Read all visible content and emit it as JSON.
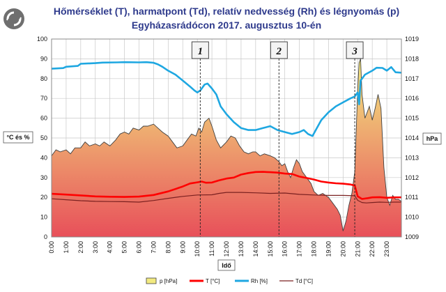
{
  "title_line1": "Hőmérséklet (T), harmatpont (Td), relatív nedvesség (Rh) és légnyomás (p)",
  "title_line2": "Egyházasrádócon 2017. augusztus 10-én",
  "colors": {
    "pressure_fill_top": "#f2ea80",
    "pressure_fill_bottom": "#e8505a",
    "pressure_line": "#404040",
    "temperature": "#ff0000",
    "humidity": "#1ea7e1",
    "dewpoint": "#7a2020",
    "grid": "#c8c8c8"
  },
  "chart_data": {
    "type": "line",
    "x_unit": "hour",
    "x_ticks": [
      "0:00",
      "1:00",
      "2:00",
      "3:00",
      "4:00",
      "5:00",
      "6:00",
      "7:00",
      "8:00",
      "9:00",
      "10:00",
      "11:00",
      "12:00",
      "13:00",
      "14:00",
      "15:00",
      "16:00",
      "17:00",
      "18:00",
      "19:00",
      "20:00",
      "21:00",
      "22:00",
      "23:00"
    ],
    "x_range": [
      0,
      24
    ],
    "xlabel": "Idő",
    "ylabel_left": "°C és %",
    "ylabel_right": "hPa",
    "y_left": {
      "range": [
        0,
        100
      ],
      "ticks": [
        0,
        10,
        20,
        30,
        40,
        50,
        60,
        70,
        80,
        90,
        100
      ]
    },
    "y_right": {
      "range": [
        1009,
        1019
      ],
      "ticks": [
        1009,
        1010,
        1011,
        1012,
        1013,
        1014,
        1015,
        1016,
        1017,
        1018,
        1019
      ]
    },
    "grid": true,
    "legend_position": "bottom",
    "annotations": [
      {
        "label": "1",
        "x": 10.2
      },
      {
        "label": "2",
        "x": 15.6
      },
      {
        "label": "3",
        "x": 20.8
      }
    ],
    "series": [
      {
        "name": "p [hPa]",
        "axis": "right",
        "style": "area",
        "points": [
          [
            0,
            1013.1
          ],
          [
            0.3,
            1013.4
          ],
          [
            0.6,
            1013.3
          ],
          [
            1,
            1013.4
          ],
          [
            1.3,
            1013.2
          ],
          [
            1.6,
            1013.5
          ],
          [
            2,
            1013.5
          ],
          [
            2.3,
            1013.8
          ],
          [
            2.6,
            1013.6
          ],
          [
            3,
            1013.7
          ],
          [
            3.3,
            1013.6
          ],
          [
            3.6,
            1013.8
          ],
          [
            4,
            1013.6
          ],
          [
            4.4,
            1013.9
          ],
          [
            4.7,
            1014.2
          ],
          [
            5,
            1014.3
          ],
          [
            5.3,
            1014.2
          ],
          [
            5.6,
            1014.5
          ],
          [
            6,
            1014.4
          ],
          [
            6.3,
            1014.6
          ],
          [
            6.6,
            1014.6
          ],
          [
            7,
            1014.7
          ],
          [
            7.3,
            1014.5
          ],
          [
            7.6,
            1014.3
          ],
          [
            8,
            1014.1
          ],
          [
            8.3,
            1013.8
          ],
          [
            8.6,
            1013.5
          ],
          [
            9,
            1013.6
          ],
          [
            9.3,
            1013.9
          ],
          [
            9.6,
            1014.2
          ],
          [
            9.9,
            1014.1
          ],
          [
            10.1,
            1014.5
          ],
          [
            10.3,
            1014.3
          ],
          [
            10.5,
            1014.8
          ],
          [
            10.8,
            1015.0
          ],
          [
            11,
            1014.6
          ],
          [
            11.3,
            1013.9
          ],
          [
            11.6,
            1013.5
          ],
          [
            12,
            1013.8
          ],
          [
            12.3,
            1014.1
          ],
          [
            12.6,
            1014.0
          ],
          [
            12.9,
            1013.6
          ],
          [
            13.2,
            1013.3
          ],
          [
            13.5,
            1013.2
          ],
          [
            13.8,
            1013.3
          ],
          [
            14,
            1013.3
          ],
          [
            14.3,
            1013.1
          ],
          [
            14.6,
            1013.2
          ],
          [
            15,
            1013.1
          ],
          [
            15.3,
            1013.0
          ],
          [
            15.6,
            1012.8
          ],
          [
            15.8,
            1012.6
          ],
          [
            16,
            1012.7
          ],
          [
            16.2,
            1012.3
          ],
          [
            16.4,
            1012.0
          ],
          [
            16.6,
            1012.5
          ],
          [
            16.8,
            1012.9
          ],
          [
            17,
            1012.7
          ],
          [
            17.2,
            1012.3
          ],
          [
            17.5,
            1012.0
          ],
          [
            17.8,
            1011.7
          ],
          [
            18,
            1011.3
          ],
          [
            18.3,
            1011.1
          ],
          [
            18.6,
            1011.2
          ],
          [
            19,
            1011.0
          ],
          [
            19.3,
            1010.7
          ],
          [
            19.6,
            1010.4
          ],
          [
            19.8,
            1010.1
          ],
          [
            20,
            1009.3
          ],
          [
            20.2,
            1009.8
          ],
          [
            20.4,
            1010.6
          ],
          [
            20.6,
            1011.2
          ],
          [
            20.8,
            1012.3
          ],
          [
            20.9,
            1014.4
          ],
          [
            21,
            1016.5
          ],
          [
            21.1,
            1017.8
          ],
          [
            21.2,
            1018.0
          ],
          [
            21.3,
            1016.2
          ],
          [
            21.5,
            1015.0
          ],
          [
            21.8,
            1015.6
          ],
          [
            22,
            1014.9
          ],
          [
            22.2,
            1015.5
          ],
          [
            22.4,
            1016.2
          ],
          [
            22.6,
            1015.5
          ],
          [
            22.8,
            1012.5
          ],
          [
            23,
            1011.0
          ],
          [
            23.2,
            1010.6
          ],
          [
            23.4,
            1011.1
          ],
          [
            23.6,
            1010.9
          ],
          [
            23.8,
            1010.9
          ],
          [
            24,
            1010.8
          ]
        ]
      },
      {
        "name": "T [°C]",
        "axis": "left",
        "style": "line",
        "points": [
          [
            0,
            21.8
          ],
          [
            1,
            21.4
          ],
          [
            2,
            21.0
          ],
          [
            3,
            20.5
          ],
          [
            4,
            20.3
          ],
          [
            5,
            20.2
          ],
          [
            6,
            20.4
          ],
          [
            7,
            21.2
          ],
          [
            8,
            23.0
          ],
          [
            9,
            25.5
          ],
          [
            9.5,
            27.0
          ],
          [
            10,
            27.6
          ],
          [
            10.3,
            28.0
          ],
          [
            10.6,
            27.4
          ],
          [
            11,
            27.5
          ],
          [
            11.5,
            28.6
          ],
          [
            12,
            29.5
          ],
          [
            12.5,
            30.0
          ],
          [
            13,
            31.5
          ],
          [
            13.5,
            32.3
          ],
          [
            14,
            32.8
          ],
          [
            14.5,
            32.9
          ],
          [
            15,
            32.7
          ],
          [
            15.5,
            32.5
          ],
          [
            16,
            32.0
          ],
          [
            16.5,
            31.8
          ],
          [
            17,
            30.5
          ],
          [
            17.5,
            29.8
          ],
          [
            18,
            29.0
          ],
          [
            18.5,
            28.0
          ],
          [
            19,
            27.5
          ],
          [
            19.5,
            27.1
          ],
          [
            20,
            26.9
          ],
          [
            20.5,
            26.5
          ],
          [
            20.8,
            26.0
          ],
          [
            21,
            20.5
          ],
          [
            21.3,
            19.2
          ],
          [
            21.7,
            19.6
          ],
          [
            22,
            20.0
          ],
          [
            22.5,
            20.1
          ],
          [
            23,
            19.8
          ],
          [
            23.5,
            20.0
          ],
          [
            24,
            20.0
          ]
        ]
      },
      {
        "name": "Rh [%]",
        "axis": "left",
        "style": "line",
        "points": [
          [
            0,
            85
          ],
          [
            0.8,
            85.3
          ],
          [
            1,
            86
          ],
          [
            1.8,
            86.4
          ],
          [
            2,
            87.5
          ],
          [
            3,
            87.8
          ],
          [
            3.5,
            88.1
          ],
          [
            4.5,
            88.2
          ],
          [
            5,
            88.3
          ],
          [
            6,
            88.2
          ],
          [
            6.5,
            88.3
          ],
          [
            7,
            88
          ],
          [
            7.3,
            87.2
          ],
          [
            7.6,
            86
          ],
          [
            8,
            84
          ],
          [
            8.5,
            82
          ],
          [
            9,
            79
          ],
          [
            9.5,
            76
          ],
          [
            9.8,
            74
          ],
          [
            10,
            73
          ],
          [
            10.2,
            74
          ],
          [
            10.5,
            77
          ],
          [
            10.7,
            77.5
          ],
          [
            11,
            75
          ],
          [
            11.3,
            72
          ],
          [
            11.6,
            66
          ],
          [
            12,
            62
          ],
          [
            12.5,
            58
          ],
          [
            13,
            55
          ],
          [
            13.5,
            54
          ],
          [
            14,
            54
          ],
          [
            14.5,
            55
          ],
          [
            15,
            56
          ],
          [
            15.5,
            54
          ],
          [
            16,
            53
          ],
          [
            16.5,
            52
          ],
          [
            17,
            53
          ],
          [
            17.3,
            54
          ],
          [
            17.6,
            52
          ],
          [
            17.9,
            51
          ],
          [
            18.2,
            55
          ],
          [
            18.5,
            59
          ],
          [
            19,
            63
          ],
          [
            19.5,
            66
          ],
          [
            20,
            68
          ],
          [
            20.5,
            70
          ],
          [
            20.8,
            71
          ],
          [
            21,
            73
          ],
          [
            21.1,
            67
          ],
          [
            21.2,
            79
          ],
          [
            21.5,
            82
          ],
          [
            22,
            84
          ],
          [
            22.3,
            85.5
          ],
          [
            22.7,
            85.4
          ],
          [
            23,
            84
          ],
          [
            23.3,
            85.8
          ],
          [
            23.6,
            83.2
          ],
          [
            24,
            83
          ]
        ]
      },
      {
        "name": "Td [°C]",
        "axis": "left",
        "style": "line",
        "points": [
          [
            0,
            19.3
          ],
          [
            1,
            18.8
          ],
          [
            2,
            18.3
          ],
          [
            3,
            18.0
          ],
          [
            4,
            17.9
          ],
          [
            5,
            17.8
          ],
          [
            6,
            17.6
          ],
          [
            7,
            18.4
          ],
          [
            8,
            19.5
          ],
          [
            9,
            20.5
          ],
          [
            10,
            21.2
          ],
          [
            11,
            21.3
          ],
          [
            11.5,
            22.0
          ],
          [
            12,
            22.5
          ],
          [
            13,
            22.5
          ],
          [
            14,
            22.3
          ],
          [
            15,
            22.0
          ],
          [
            16,
            22.2
          ],
          [
            17,
            21.5
          ],
          [
            18,
            21.2
          ],
          [
            19,
            21.0
          ],
          [
            20,
            21.0
          ],
          [
            20.8,
            20.8
          ],
          [
            21,
            18.5
          ],
          [
            21.3,
            17.4
          ],
          [
            21.6,
            17.2
          ],
          [
            22,
            17.4
          ],
          [
            22.5,
            17.6
          ],
          [
            23,
            17.5
          ],
          [
            23.5,
            17.6
          ],
          [
            24,
            17.6
          ]
        ]
      }
    ]
  }
}
